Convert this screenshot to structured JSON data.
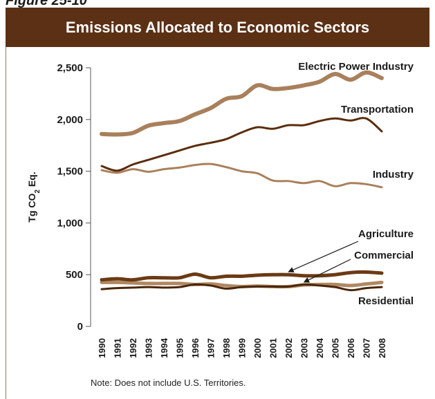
{
  "figure_label": "Figure 25-10",
  "note": "Note: Does not include U.S. Territories.",
  "colors": {
    "header_bg": "#5b3015",
    "light_brown": "#a9805c",
    "dark_brown": "#5a2d0c"
  },
  "chart_data": {
    "type": "line",
    "title": "Emissions Allocated to Economic Sectors",
    "ylabel": "Tg CO2 Eq.",
    "ylabel_main": "Tg CO",
    "ylabel_sub": "2",
    "ylabel_end": " Eq.",
    "xlabel": "",
    "ylim": [
      0,
      2500
    ],
    "yticks": [
      0,
      500,
      1000,
      1500,
      2000,
      2500
    ],
    "ytick_labels": [
      "0",
      "500",
      "1,000",
      "1,500",
      "2,000",
      "2,500"
    ],
    "x": [
      "1990",
      "1991",
      "1992",
      "1993",
      "1994",
      "1995",
      "1996",
      "1997",
      "1998",
      "1999",
      "2000",
      "2001",
      "2002",
      "2003",
      "2004",
      "2005",
      "2006",
      "2007",
      "2008"
    ],
    "grid": false,
    "series": [
      {
        "name": "Electric Power Industry",
        "color": "#a9805c",
        "values": [
          1860,
          1855,
          1870,
          1940,
          1965,
          1985,
          2050,
          2110,
          2200,
          2225,
          2330,
          2295,
          2305,
          2330,
          2365,
          2440,
          2385,
          2455,
          2400
        ]
      },
      {
        "name": "Transportation",
        "color": "#5a2d0c",
        "values": [
          1550,
          1505,
          1565,
          1610,
          1655,
          1700,
          1745,
          1775,
          1810,
          1875,
          1925,
          1910,
          1945,
          1945,
          1985,
          2010,
          1990,
          2010,
          1885
        ]
      },
      {
        "name": "Industry",
        "color": "#a9805c",
        "values": [
          1510,
          1485,
          1520,
          1495,
          1520,
          1535,
          1560,
          1570,
          1540,
          1500,
          1480,
          1410,
          1405,
          1385,
          1405,
          1355,
          1385,
          1375,
          1345
        ]
      },
      {
        "name": "Agriculture",
        "color": "#6b3a14",
        "values": [
          450,
          460,
          450,
          470,
          470,
          470,
          505,
          470,
          485,
          485,
          495,
          500,
          500,
          490,
          490,
          500,
          520,
          525,
          515
        ]
      },
      {
        "name": "Commercial",
        "color": "#b08862",
        "values": [
          425,
          425,
          420,
          415,
          415,
          415,
          405,
          410,
          395,
          385,
          390,
          385,
          385,
          400,
          405,
          405,
          395,
          410,
          425
        ]
      },
      {
        "name": "Residential",
        "color": "#4a2508",
        "values": [
          360,
          370,
          375,
          380,
          375,
          380,
          405,
          395,
          365,
          380,
          385,
          385,
          385,
          405,
          395,
          380,
          350,
          370,
          380
        ]
      }
    ],
    "annotations": [
      {
        "text": "Agriculture",
        "target_series": "Agriculture",
        "target_x": "2002"
      },
      {
        "text": "Commercial",
        "target_series": "Commercial",
        "target_x": "2003"
      }
    ]
  }
}
